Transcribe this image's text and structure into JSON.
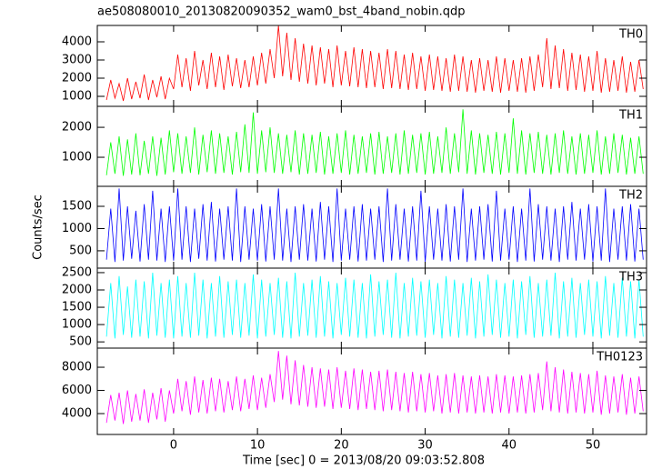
{
  "chart_data": {
    "type": "line",
    "title": "ae508080010_20130820090352_wam0_bst_4band_nobin.qdp",
    "xlabel": "Time [sec] 0 = 2013/08/20 09:03:52.808",
    "ylabel": "Counts/sec",
    "xlim": [
      -9.1,
      56.4
    ],
    "xticks": [
      0,
      10,
      20,
      30,
      40,
      50
    ],
    "x": [
      -8,
      -7.5,
      -7,
      -6.5,
      -6,
      -5.5,
      -5,
      -4.5,
      -4,
      -3.5,
      -3,
      -2.5,
      -2,
      -1.5,
      -1,
      -0.5,
      0,
      0.5,
      1,
      1.5,
      2,
      2.5,
      3,
      3.5,
      4,
      4.5,
      5,
      5.5,
      6,
      6.5,
      7,
      7.5,
      8,
      8.5,
      9,
      9.5,
      10,
      10.5,
      11,
      11.5,
      12,
      12.5,
      13,
      13.5,
      14,
      14.5,
      15,
      15.5,
      16,
      16.5,
      17,
      17.5,
      18,
      18.5,
      19,
      19.5,
      20,
      20.5,
      21,
      21.5,
      22,
      22.5,
      23,
      23.5,
      24,
      24.5,
      25,
      25.5,
      26,
      26.5,
      27,
      27.5,
      28,
      28.5,
      29,
      29.5,
      30,
      30.5,
      31,
      31.5,
      32,
      32.5,
      33,
      33.5,
      34,
      34.5,
      35,
      35.5,
      36,
      36.5,
      37,
      37.5,
      38,
      38.5,
      39,
      39.5,
      40,
      40.5,
      41,
      41.5,
      42,
      42.5,
      43,
      43.5,
      44,
      44.5,
      45,
      45.5,
      46,
      46.5,
      47,
      47.5,
      48,
      48.5,
      49,
      49.5,
      50,
      50.5,
      51,
      51.5,
      52,
      52.5,
      53,
      53.5,
      54,
      54.5,
      55,
      55.5,
      56
    ],
    "series": [
      {
        "name": "TH0",
        "color": "#ff0000",
        "ylim": [
          450,
          4900
        ],
        "yticks": [
          1000,
          2000,
          3000,
          4000
        ],
        "values": [
          800,
          1900,
          900,
          1700,
          750,
          2000,
          850,
          1800,
          900,
          2200,
          800,
          1900,
          950,
          2100,
          850,
          2000,
          1400,
          3300,
          1500,
          3100,
          1300,
          3500,
          1600,
          3000,
          1400,
          3400,
          1500,
          3200,
          1350,
          3300,
          1550,
          3100,
          1450,
          3000,
          1500,
          3200,
          1600,
          3400,
          1700,
          3600,
          2000,
          4900,
          2100,
          4500,
          1900,
          4200,
          1800,
          3900,
          1700,
          3800,
          1600,
          3700,
          1700,
          3600,
          1500,
          3800,
          1600,
          3500,
          1550,
          3700,
          1500,
          3600,
          1450,
          3500,
          1500,
          3400,
          1400,
          3600,
          1450,
          3500,
          1400,
          3300,
          1350,
          3400,
          1400,
          3200,
          1300,
          3300,
          1350,
          3200,
          1300,
          3100,
          1250,
          3300,
          1300,
          3200,
          1250,
          3000,
          1200,
          3100,
          1300,
          3000,
          1250,
          3200,
          1200,
          3100,
          1300,
          3000,
          1250,
          3100,
          1200,
          3200,
          1300,
          3300,
          1500,
          4200,
          1400,
          3800,
          1450,
          3600,
          1300,
          3400,
          1350,
          3300,
          1250,
          3200,
          1300,
          3500,
          1200,
          3100,
          1250,
          3000,
          1300,
          3200,
          1200,
          2900,
          1250,
          3000,
          1400
        ]
      },
      {
        "name": "TH1",
        "color": "#00ff00",
        "ylim": [
          30,
          2700
        ],
        "yticks": [
          1000,
          2000
        ],
        "values": [
          400,
          1500,
          450,
          1700,
          380,
          1600,
          420,
          1800,
          400,
          1550,
          450,
          1700,
          380,
          1650,
          420,
          1900,
          500,
          1800,
          450,
          1700,
          480,
          2000,
          420,
          1750,
          500,
          1900,
          450,
          1800,
          480,
          1700,
          420,
          1850,
          500,
          2100,
          480,
          2500,
          450,
          1900,
          500,
          2000,
          480,
          1800,
          450,
          1750,
          500,
          1900,
          420,
          1800,
          450,
          1750,
          480,
          1850,
          420,
          1700,
          450,
          1800,
          480,
          1900,
          420,
          1750,
          450,
          1700,
          480,
          1800,
          420,
          1850,
          450,
          1700,
          480,
          1800,
          420,
          1900,
          450,
          1750,
          480,
          1800,
          420,
          1850,
          450,
          1700,
          480,
          2000,
          450,
          1800,
          500,
          2600,
          450,
          1900,
          420,
          1800,
          480,
          1750,
          450,
          1850,
          420,
          1800,
          480,
          2300,
          450,
          1900,
          420,
          1800,
          480,
          1850,
          450,
          1750,
          420,
          1800,
          480,
          1900,
          450,
          1700,
          420,
          1800,
          450,
          1750,
          480,
          1900,
          420,
          1700,
          450,
          1800,
          480,
          1750,
          420,
          1650,
          450,
          1700,
          450
        ]
      },
      {
        "name": "TH2",
        "color": "#0000ff",
        "ylim": [
          110,
          1950
        ],
        "yticks": [
          500,
          1000,
          1500
        ],
        "values": [
          300,
          1450,
          250,
          1900,
          280,
          1500,
          320,
          1400,
          260,
          1550,
          300,
          1850,
          280,
          1450,
          250,
          1500,
          280,
          1900,
          300,
          1500,
          250,
          1450,
          320,
          1550,
          280,
          1600,
          260,
          1450,
          300,
          1500,
          280,
          1900,
          250,
          1500,
          300,
          1450,
          280,
          1550,
          260,
          1500,
          300,
          1900,
          280,
          1450,
          250,
          1500,
          300,
          1550,
          280,
          1450,
          260,
          1600,
          300,
          1500,
          250,
          1900,
          280,
          1450,
          300,
          1500,
          260,
          1550,
          280,
          1450,
          300,
          1500,
          250,
          1900,
          280,
          1550,
          300,
          1450,
          260,
          1500,
          280,
          1850,
          250,
          1500,
          300,
          1450,
          280,
          1550,
          260,
          1500,
          300,
          1900,
          250,
          1450,
          280,
          1500,
          300,
          1550,
          260,
          1850,
          280,
          1450,
          300,
          1500,
          250,
          1450,
          280,
          1900,
          260,
          1550,
          300,
          1500,
          280,
          1450,
          250,
          1500,
          300,
          1600,
          280,
          1450,
          300,
          1550,
          260,
          1500,
          280,
          1900,
          250,
          1450,
          300,
          1500,
          280,
          1550,
          260,
          1450,
          300
        ]
      },
      {
        "name": "TH3",
        "color": "#00ffff",
        "ylim": [
          320,
          2630
        ],
        "yticks": [
          500,
          1000,
          1500,
          2000,
          2500
        ],
        "values": [
          650,
          2200,
          600,
          2400,
          700,
          2100,
          620,
          2300,
          650,
          2250,
          600,
          2500,
          680,
          2200,
          620,
          2300,
          600,
          2400,
          650,
          2200,
          620,
          2500,
          680,
          2300,
          600,
          2200,
          650,
          2400,
          620,
          2250,
          700,
          2300,
          620,
          2200,
          680,
          2450,
          600,
          2300,
          650,
          2200,
          700,
          2350,
          620,
          2250,
          600,
          2500,
          650,
          2200,
          680,
          2300,
          620,
          2400,
          650,
          2250,
          600,
          2200,
          700,
          2350,
          650,
          2300,
          620,
          2200,
          600,
          2450,
          650,
          2250,
          700,
          2300,
          620,
          2500,
          600,
          2200,
          650,
          2350,
          680,
          2250,
          620,
          2300,
          700,
          2200,
          600,
          2400,
          650,
          2300,
          620,
          2200,
          680,
          2350,
          600,
          2250,
          650,
          2450,
          700,
          2300,
          620,
          2200,
          650,
          2300,
          600,
          2250,
          700,
          2400,
          620,
          2200,
          650,
          2300,
          680,
          2500,
          600,
          2250,
          650,
          2350,
          620,
          2200,
          700,
          2300,
          650,
          2250,
          600,
          2400,
          680,
          2200,
          620,
          2350,
          650,
          2250,
          600,
          2300,
          650
        ]
      },
      {
        "name": "TH0123",
        "color": "#ff00ff",
        "ylim": [
          2200,
          9650
        ],
        "yticks": [
          4000,
          6000,
          8000
        ],
        "values": [
          3200,
          5600,
          3400,
          5800,
          3100,
          6000,
          3300,
          5700,
          3400,
          6100,
          3200,
          5800,
          3500,
          6200,
          3300,
          6000,
          4000,
          7000,
          4200,
          6800,
          3900,
          7200,
          4100,
          6900,
          4000,
          7100,
          4200,
          7000,
          4100,
          6800,
          4300,
          7200,
          4200,
          7000,
          4400,
          7300,
          4300,
          7100,
          4500,
          7400,
          5000,
          9400,
          5200,
          9000,
          4800,
          8600,
          4700,
          8200,
          4600,
          8000,
          4500,
          7900,
          4600,
          7800,
          4400,
          8000,
          4500,
          7700,
          4400,
          7900,
          4300,
          7800,
          4400,
          7600,
          4300,
          7700,
          4200,
          7800,
          4300,
          7600,
          4200,
          7500,
          4100,
          7600,
          4200,
          7400,
          4100,
          7500,
          4200,
          7300,
          4000,
          7400,
          4100,
          7500,
          4000,
          7300,
          4100,
          7200,
          4000,
          7300,
          4100,
          7200,
          4000,
          7400,
          4100,
          7300,
          4000,
          7200,
          4100,
          7300,
          4000,
          7400,
          4100,
          7500,
          4300,
          8500,
          4200,
          8000,
          4100,
          7800,
          4000,
          7600,
          4100,
          7500,
          4000,
          7400,
          4100,
          7700,
          3900,
          7300,
          4000,
          7200,
          4100,
          7400,
          3900,
          7100,
          4000,
          7200,
          4200
        ]
      }
    ]
  }
}
